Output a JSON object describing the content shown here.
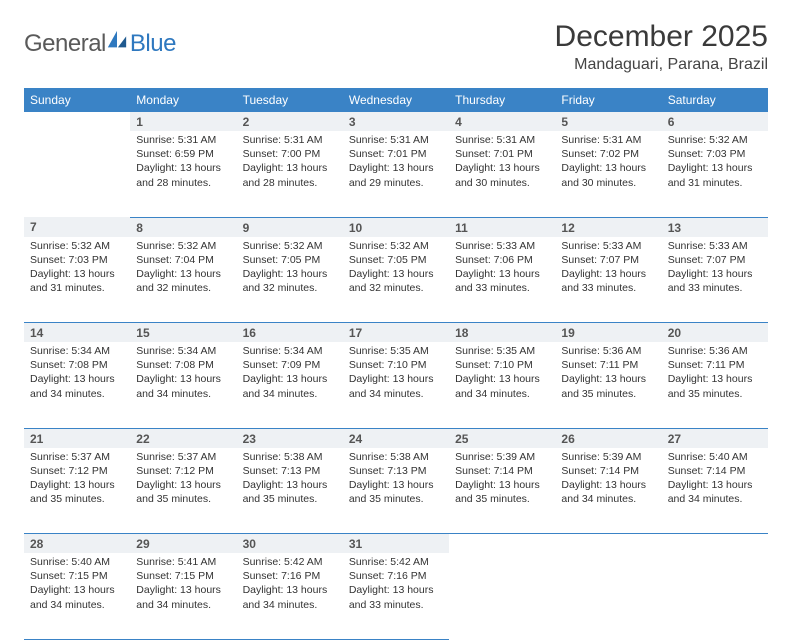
{
  "logo": {
    "part1": "General",
    "part2": "Blue"
  },
  "title": "December 2025",
  "location": "Mandaguari, Parana, Brazil",
  "colors": {
    "header_bg": "#3a83c6",
    "header_text": "#ffffff",
    "daynum_bg": "#eef1f4",
    "border": "#3a83c6",
    "logo_gray": "#5a5a5a",
    "logo_blue": "#2e78bf"
  },
  "weekdays": [
    "Sunday",
    "Monday",
    "Tuesday",
    "Wednesday",
    "Thursday",
    "Friday",
    "Saturday"
  ],
  "weeks": [
    {
      "nums": [
        "",
        "1",
        "2",
        "3",
        "4",
        "5",
        "6"
      ],
      "cells": [
        null,
        {
          "sunrise": "5:31 AM",
          "sunset": "6:59 PM",
          "daylight": "13 hours and 28 minutes."
        },
        {
          "sunrise": "5:31 AM",
          "sunset": "7:00 PM",
          "daylight": "13 hours and 28 minutes."
        },
        {
          "sunrise": "5:31 AM",
          "sunset": "7:01 PM",
          "daylight": "13 hours and 29 minutes."
        },
        {
          "sunrise": "5:31 AM",
          "sunset": "7:01 PM",
          "daylight": "13 hours and 30 minutes."
        },
        {
          "sunrise": "5:31 AM",
          "sunset": "7:02 PM",
          "daylight": "13 hours and 30 minutes."
        },
        {
          "sunrise": "5:32 AM",
          "sunset": "7:03 PM",
          "daylight": "13 hours and 31 minutes."
        }
      ]
    },
    {
      "nums": [
        "7",
        "8",
        "9",
        "10",
        "11",
        "12",
        "13"
      ],
      "cells": [
        {
          "sunrise": "5:32 AM",
          "sunset": "7:03 PM",
          "daylight": "13 hours and 31 minutes."
        },
        {
          "sunrise": "5:32 AM",
          "sunset": "7:04 PM",
          "daylight": "13 hours and 32 minutes."
        },
        {
          "sunrise": "5:32 AM",
          "sunset": "7:05 PM",
          "daylight": "13 hours and 32 minutes."
        },
        {
          "sunrise": "5:32 AM",
          "sunset": "7:05 PM",
          "daylight": "13 hours and 32 minutes."
        },
        {
          "sunrise": "5:33 AM",
          "sunset": "7:06 PM",
          "daylight": "13 hours and 33 minutes."
        },
        {
          "sunrise": "5:33 AM",
          "sunset": "7:07 PM",
          "daylight": "13 hours and 33 minutes."
        },
        {
          "sunrise": "5:33 AM",
          "sunset": "7:07 PM",
          "daylight": "13 hours and 33 minutes."
        }
      ]
    },
    {
      "nums": [
        "14",
        "15",
        "16",
        "17",
        "18",
        "19",
        "20"
      ],
      "cells": [
        {
          "sunrise": "5:34 AM",
          "sunset": "7:08 PM",
          "daylight": "13 hours and 34 minutes."
        },
        {
          "sunrise": "5:34 AM",
          "sunset": "7:08 PM",
          "daylight": "13 hours and 34 minutes."
        },
        {
          "sunrise": "5:34 AM",
          "sunset": "7:09 PM",
          "daylight": "13 hours and 34 minutes."
        },
        {
          "sunrise": "5:35 AM",
          "sunset": "7:10 PM",
          "daylight": "13 hours and 34 minutes."
        },
        {
          "sunrise": "5:35 AM",
          "sunset": "7:10 PM",
          "daylight": "13 hours and 34 minutes."
        },
        {
          "sunrise": "5:36 AM",
          "sunset": "7:11 PM",
          "daylight": "13 hours and 35 minutes."
        },
        {
          "sunrise": "5:36 AM",
          "sunset": "7:11 PM",
          "daylight": "13 hours and 35 minutes."
        }
      ]
    },
    {
      "nums": [
        "21",
        "22",
        "23",
        "24",
        "25",
        "26",
        "27"
      ],
      "cells": [
        {
          "sunrise": "5:37 AM",
          "sunset": "7:12 PM",
          "daylight": "13 hours and 35 minutes."
        },
        {
          "sunrise": "5:37 AM",
          "sunset": "7:12 PM",
          "daylight": "13 hours and 35 minutes."
        },
        {
          "sunrise": "5:38 AM",
          "sunset": "7:13 PM",
          "daylight": "13 hours and 35 minutes."
        },
        {
          "sunrise": "5:38 AM",
          "sunset": "7:13 PM",
          "daylight": "13 hours and 35 minutes."
        },
        {
          "sunrise": "5:39 AM",
          "sunset": "7:14 PM",
          "daylight": "13 hours and 35 minutes."
        },
        {
          "sunrise": "5:39 AM",
          "sunset": "7:14 PM",
          "daylight": "13 hours and 34 minutes."
        },
        {
          "sunrise": "5:40 AM",
          "sunset": "7:14 PM",
          "daylight": "13 hours and 34 minutes."
        }
      ]
    },
    {
      "nums": [
        "28",
        "29",
        "30",
        "31",
        "",
        "",
        ""
      ],
      "cells": [
        {
          "sunrise": "5:40 AM",
          "sunset": "7:15 PM",
          "daylight": "13 hours and 34 minutes."
        },
        {
          "sunrise": "5:41 AM",
          "sunset": "7:15 PM",
          "daylight": "13 hours and 34 minutes."
        },
        {
          "sunrise": "5:42 AM",
          "sunset": "7:16 PM",
          "daylight": "13 hours and 34 minutes."
        },
        {
          "sunrise": "5:42 AM",
          "sunset": "7:16 PM",
          "daylight": "13 hours and 33 minutes."
        },
        null,
        null,
        null
      ]
    }
  ],
  "labels": {
    "sunrise": "Sunrise: ",
    "sunset": "Sunset: ",
    "daylight": "Daylight: "
  }
}
